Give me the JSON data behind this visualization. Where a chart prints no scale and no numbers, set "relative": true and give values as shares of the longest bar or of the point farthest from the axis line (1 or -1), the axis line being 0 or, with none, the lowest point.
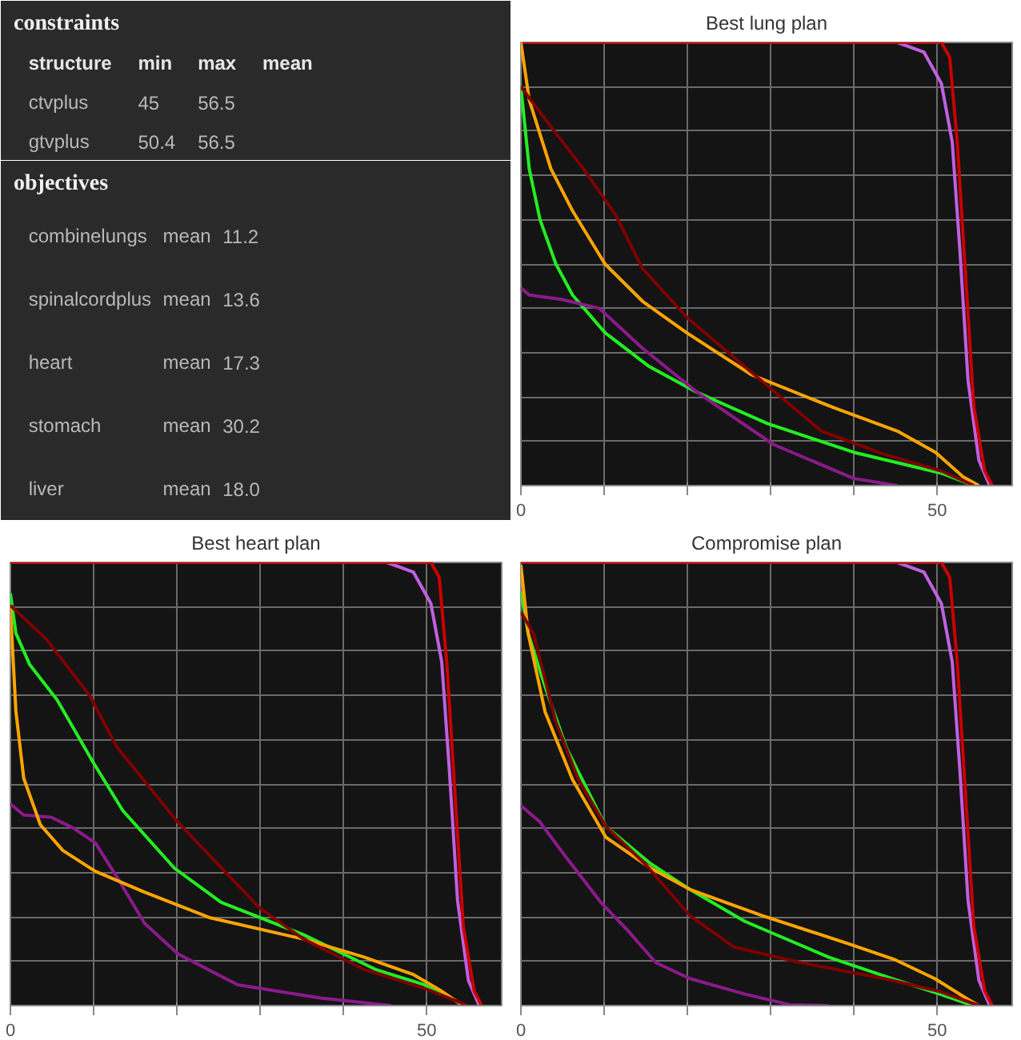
{
  "chart_data": [
    {
      "type": "other",
      "title": "constraints",
      "annotations": [
        "structure min max mean",
        "ctvplus 45 56.5",
        "gtvplus 50.4 56.5"
      ]
    },
    {
      "type": "other",
      "title": "objectives",
      "annotations": [
        "combinelungs mean 11.2",
        "spinalcordplus mean 13.6",
        "heart mean 17.3",
        "stomach mean 30.2",
        "liver mean 18.0"
      ]
    },
    {
      "type": "line",
      "title": "Best lung plan",
      "relative": true,
      "xlim": [
        0,
        59
      ],
      "xticks": [
        0,
        {
          "value": 10,
          "label": null
        },
        {
          "value": 20,
          "label": null
        },
        {
          "value": 30,
          "label": null
        },
        {
          "value": 40,
          "label": null
        },
        50
      ],
      "grid": true,
      "line_style": "solid",
      "series": [
        {
          "color": "#c060e0",
          "x": [
            0,
            45.2,
            48.4,
            50.5,
            51.8,
            52.7,
            53.7,
            55,
            56.3
          ],
          "values": [
            1,
            1,
            0.978,
            0.907,
            0.775,
            0.536,
            0.237,
            0.057,
            0
          ]
        },
        {
          "color": "#cc0000",
          "x": [
            0,
            50.5,
            51.5,
            52.4,
            53.4,
            54.4,
            55.7,
            56.6
          ],
          "values": [
            1,
            1,
            0.966,
            0.775,
            0.476,
            0.177,
            0.033,
            0
          ]
        },
        {
          "color": "#22ee22",
          "x": [
            0,
            1.0,
            2.3,
            4.2,
            6.2,
            10.1,
            15.3,
            21.2,
            29.6,
            40,
            50.5,
            54.4
          ],
          "values": [
            0.9,
            0.715,
            0.6,
            0.5,
            0.43,
            0.345,
            0.27,
            0.21,
            0.14,
            0.075,
            0.028,
            0
          ]
        },
        {
          "color": "#8b1a8b",
          "x": [
            0,
            1,
            4.9,
            9.4,
            14.6,
            21.2,
            30.3,
            40,
            45.2
          ],
          "values": [
            0.446,
            0.43,
            0.42,
            0.4,
            0.31,
            0.21,
            0.093,
            0.016,
            0
          ]
        },
        {
          "color": "#ffa500",
          "x": [
            0,
            1,
            3.6,
            6.2,
            10.1,
            14.6,
            19.9,
            27.7,
            37.4,
            45.2,
            49.8,
            53.1,
            55
          ],
          "values": [
            1,
            0.87,
            0.715,
            0.62,
            0.5,
            0.416,
            0.345,
            0.25,
            0.177,
            0.123,
            0.075,
            0.02,
            0
          ]
        },
        {
          "color": "#800000",
          "x": [
            0,
            3.6,
            7.5,
            11.4,
            14.6,
            19.9,
            29.6,
            36.1,
            43.9,
            50.5,
            54.4
          ],
          "values": [
            0.9,
            0.81,
            0.715,
            0.61,
            0.49,
            0.38,
            0.225,
            0.123,
            0.069,
            0.033,
            0
          ]
        }
      ]
    },
    {
      "type": "line",
      "title": "Best heart plan",
      "relative": true,
      "xlim": [
        0,
        59
      ],
      "xticks": [
        0,
        {
          "value": 10,
          "label": null
        },
        {
          "value": 20,
          "label": null
        },
        {
          "value": 30,
          "label": null
        },
        {
          "value": 40,
          "label": null
        },
        50
      ],
      "grid": true,
      "line_style": "solid",
      "series": [
        {
          "color": "#c060e0",
          "x": [
            0,
            45.2,
            48.4,
            50.5,
            51.8,
            52.7,
            53.7,
            55,
            56.3
          ],
          "values": [
            1,
            1,
            0.978,
            0.907,
            0.775,
            0.536,
            0.237,
            0.057,
            0
          ]
        },
        {
          "color": "#cc0000",
          "x": [
            0,
            50.5,
            51.5,
            52.4,
            53.4,
            54.4,
            55.7,
            56.6
          ],
          "values": [
            1,
            1,
            0.966,
            0.775,
            0.476,
            0.177,
            0.033,
            0
          ]
        },
        {
          "color": "#22ee22",
          "x": [
            0,
            0.66,
            2.3,
            5.6,
            9.9,
            13.5,
            19.7,
            25.3,
            35.2,
            43.8,
            49.7,
            54.6
          ],
          "values": [
            0.93,
            0.84,
            0.77,
            0.69,
            0.55,
            0.44,
            0.31,
            0.233,
            0.16,
            0.082,
            0.047,
            0
          ]
        },
        {
          "color": "#8b1a8b",
          "x": [
            0,
            1.6,
            4.9,
            7.6,
            10.2,
            12.8,
            16.1,
            20.1,
            27.3,
            37.2,
            45.7
          ],
          "values": [
            0.455,
            0.43,
            0.425,
            0.4,
            0.367,
            0.29,
            0.186,
            0.117,
            0.047,
            0.017,
            0
          ]
        },
        {
          "color": "#ffa500",
          "x": [
            0,
            0.66,
            1.6,
            3.6,
            6.3,
            10.2,
            16.1,
            24,
            35.2,
            42.4,
            48.4,
            51.6,
            54.3
          ],
          "values": [
            0.897,
            0.664,
            0.513,
            0.408,
            0.35,
            0.303,
            0.256,
            0.198,
            0.15,
            0.11,
            0.07,
            0.035,
            0
          ]
        },
        {
          "color": "#800000",
          "x": [
            0,
            4.3,
            9.5,
            12.8,
            20.1,
            29.9,
            35.2,
            42.4,
            50.3,
            54.9
          ],
          "values": [
            0.903,
            0.827,
            0.7,
            0.583,
            0.414,
            0.221,
            0.15,
            0.082,
            0.035,
            0
          ]
        }
      ]
    },
    {
      "type": "line",
      "title": "Compromise plan",
      "relative": true,
      "xlim": [
        0,
        59
      ],
      "xticks": [
        0,
        {
          "value": 10,
          "label": null
        },
        {
          "value": 20,
          "label": null
        },
        {
          "value": 30,
          "label": null
        },
        {
          "value": 40,
          "label": null
        },
        50
      ],
      "grid": true,
      "line_style": "solid",
      "series": [
        {
          "color": "#c060e0",
          "x": [
            0,
            45.2,
            48.4,
            50.5,
            51.8,
            52.7,
            53.7,
            55,
            56.3
          ],
          "values": [
            1,
            1,
            0.978,
            0.907,
            0.775,
            0.536,
            0.237,
            0.057,
            0
          ]
        },
        {
          "color": "#cc0000",
          "x": [
            0,
            50.5,
            51.5,
            52.4,
            53.4,
            54.4,
            55.7,
            56.6
          ],
          "values": [
            1,
            1,
            0.966,
            0.775,
            0.476,
            0.177,
            0.033,
            0
          ]
        },
        {
          "color": "#22ee22",
          "x": [
            0,
            0.87,
            2.9,
            5.5,
            10.2,
            15.6,
            20.3,
            26.9,
            37,
            43.6,
            50.3,
            54.3
          ],
          "values": [
            0.935,
            0.84,
            0.72,
            0.58,
            0.404,
            0.32,
            0.262,
            0.19,
            0.109,
            0.067,
            0.026,
            0
          ]
        },
        {
          "color": "#8b1a8b",
          "x": [
            0,
            2.2,
            5.5,
            9.6,
            12.9,
            16.2,
            20.3,
            26.9,
            32.3,
            37
          ],
          "values": [
            0.451,
            0.416,
            0.333,
            0.233,
            0.168,
            0.097,
            0.061,
            0.026,
            0.002,
            0
          ]
        },
        {
          "color": "#ffa500",
          "x": [
            0,
            0.87,
            2.9,
            6.2,
            10.2,
            15.6,
            20.3,
            29,
            39.6,
            45,
            49.7,
            53.7,
            55
          ],
          "values": [
            0.994,
            0.84,
            0.663,
            0.51,
            0.38,
            0.31,
            0.262,
            0.203,
            0.138,
            0.103,
            0.061,
            0.014,
            0
          ]
        },
        {
          "color": "#800000",
          "x": [
            0,
            1.5,
            4.2,
            6.9,
            10.2,
            14.9,
            20.3,
            25.6,
            33.6,
            43.6,
            50.3,
            55
          ],
          "values": [
            0.888,
            0.84,
            0.64,
            0.51,
            0.404,
            0.32,
            0.203,
            0.132,
            0.097,
            0.061,
            0.032,
            0
          ]
        }
      ]
    }
  ]
}
